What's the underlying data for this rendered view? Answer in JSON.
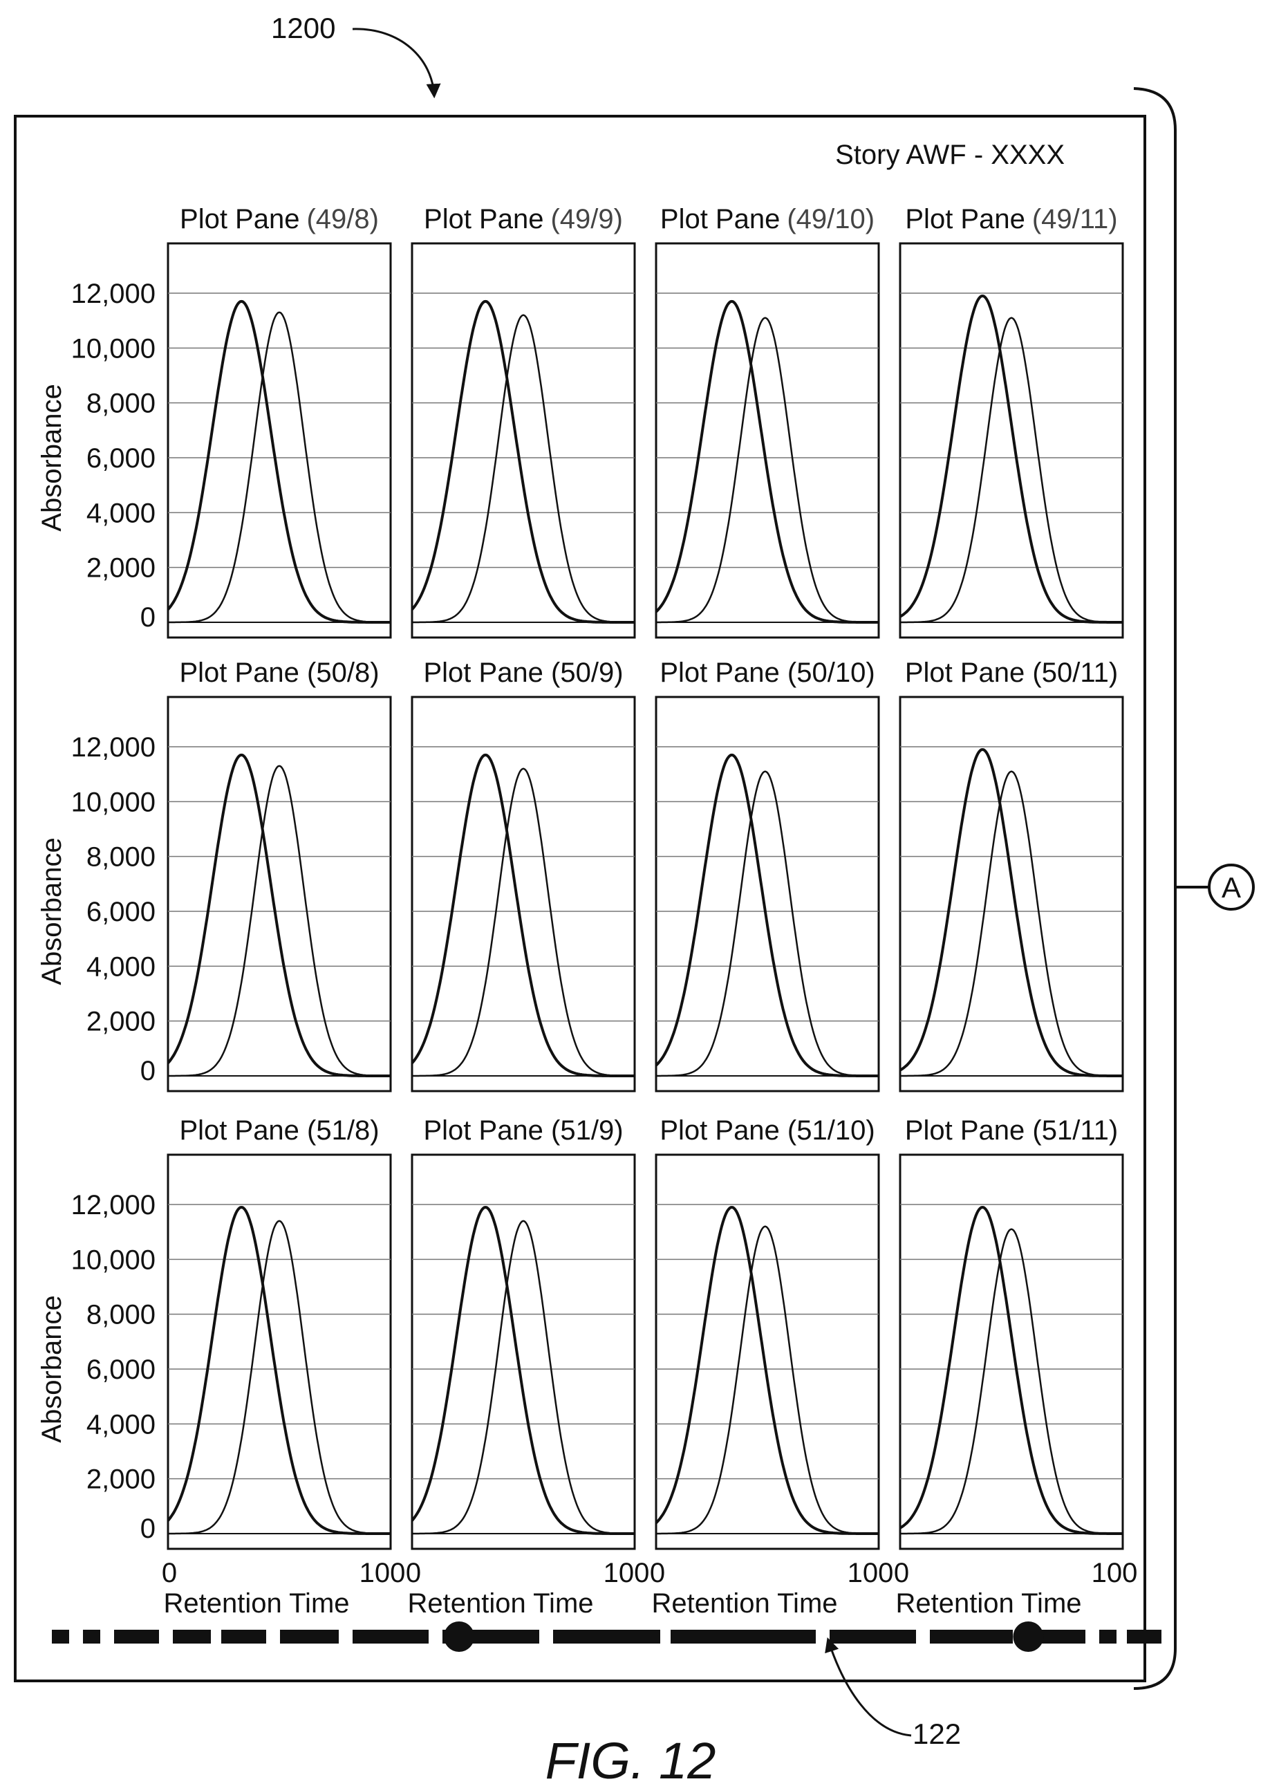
{
  "figure": {
    "ref_number": "1200",
    "scrollbar_ref": "122",
    "connector_label": "A",
    "caption": "FIG. 12",
    "story_title": "Story AWF - XXXX"
  },
  "chart_data": {
    "type": "line",
    "ylabel": "Absorbance",
    "xlabel": "Retention Time",
    "ylim": [
      0,
      14000
    ],
    "xlim": [
      0,
      100
    ],
    "y_ticks": [
      "0",
      "2,000",
      "4,000",
      "6,000",
      "8,000",
      "10,000",
      "12,000"
    ],
    "x_ticks": [
      "0",
      "100"
    ],
    "grid": true,
    "panes": [
      {
        "title": "Plot Pane",
        "subtitle": "(49/8)",
        "series": [
          {
            "peak_x": 33,
            "peak_y": 11700
          },
          {
            "peak_x": 50,
            "peak_y": 11300
          }
        ]
      },
      {
        "title": "Plot Pane",
        "subtitle": "(49/9)",
        "series": [
          {
            "peak_x": 33,
            "peak_y": 11700
          },
          {
            "peak_x": 50,
            "peak_y": 11200
          }
        ]
      },
      {
        "title": "Plot Pane",
        "subtitle": "(49/10)",
        "series": [
          {
            "peak_x": 34,
            "peak_y": 11700
          },
          {
            "peak_x": 49,
            "peak_y": 11100
          }
        ]
      },
      {
        "title": "Plot Pane",
        "subtitle": "(49/11)",
        "series": [
          {
            "peak_x": 37,
            "peak_y": 11900
          },
          {
            "peak_x": 50,
            "peak_y": 11100
          }
        ]
      },
      {
        "title": "Plot Pane (50/8)",
        "subtitle": "",
        "series": [
          {
            "peak_x": 33,
            "peak_y": 11700
          },
          {
            "peak_x": 50,
            "peak_y": 11300
          }
        ]
      },
      {
        "title": "Plot Pane (50/9)",
        "subtitle": "",
        "series": [
          {
            "peak_x": 33,
            "peak_y": 11700
          },
          {
            "peak_x": 50,
            "peak_y": 11200
          }
        ]
      },
      {
        "title": "Plot Pane (50/10)",
        "subtitle": "",
        "series": [
          {
            "peak_x": 34,
            "peak_y": 11700
          },
          {
            "peak_x": 49,
            "peak_y": 11100
          }
        ]
      },
      {
        "title": "Plot Pane (50/11)",
        "subtitle": "",
        "series": [
          {
            "peak_x": 37,
            "peak_y": 11900
          },
          {
            "peak_x": 50,
            "peak_y": 11100
          }
        ]
      },
      {
        "title": "Plot Pane (51/8)",
        "subtitle": "",
        "series": [
          {
            "peak_x": 33,
            "peak_y": 11900
          },
          {
            "peak_x": 50,
            "peak_y": 11400
          }
        ]
      },
      {
        "title": "Plot Pane (51/9)",
        "subtitle": "",
        "series": [
          {
            "peak_x": 33,
            "peak_y": 11900
          },
          {
            "peak_x": 50,
            "peak_y": 11400
          }
        ]
      },
      {
        "title": "Plot Pane (51/10)",
        "subtitle": "",
        "series": [
          {
            "peak_x": 34,
            "peak_y": 11900
          },
          {
            "peak_x": 49,
            "peak_y": 11200
          }
        ]
      },
      {
        "title": "Plot Pane (51/11)",
        "subtitle": "",
        "series": [
          {
            "peak_x": 37,
            "peak_y": 11900
          },
          {
            "peak_x": 50,
            "peak_y": 11100
          }
        ]
      }
    ]
  },
  "scrollbar": {
    "handle_positions": [
      0.367,
      0.88
    ]
  }
}
